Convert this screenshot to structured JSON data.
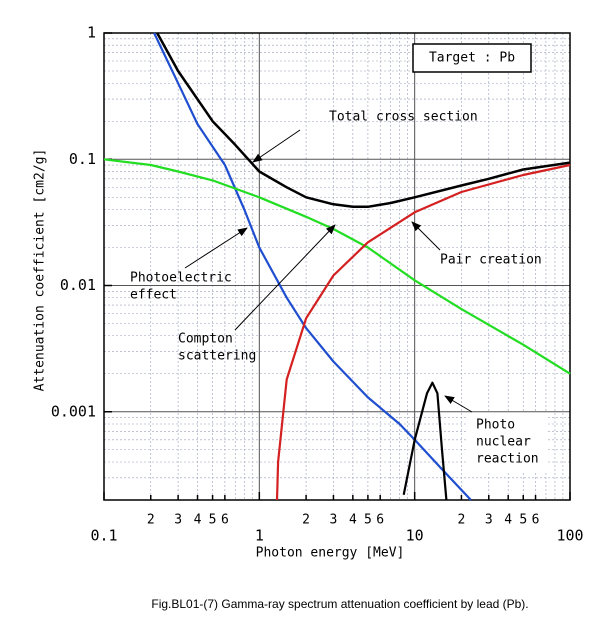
{
  "chart_data": {
    "type": "line",
    "x_label": "Photon energy [MeV]",
    "y_label": "Attenuation coefficient  [cm2/g]",
    "caption": "Fig.BL01-(7)  Gamma-ray spectrum attenuation coefficient by lead (Pb).",
    "log_x": true,
    "log_y": true,
    "grid": true,
    "minor_grid": true,
    "xlim": [
      0.1,
      100
    ],
    "ylim": [
      0.0002,
      1
    ],
    "xticks": [
      0.1,
      {
        "value": 0.2,
        "label": "2"
      },
      {
        "value": 0.3,
        "label": "3"
      },
      {
        "value": 0.4,
        "label": "4"
      },
      {
        "value": 0.5,
        "label": "5"
      },
      {
        "value": 0.6,
        "label": "6"
      },
      1,
      {
        "value": 2,
        "label": "2"
      },
      {
        "value": 3,
        "label": "3"
      },
      {
        "value": 4,
        "label": "4"
      },
      {
        "value": 5,
        "label": "5"
      },
      {
        "value": 6,
        "label": "6"
      },
      {
        "value": 10,
        "label": "10"
      },
      {
        "value": 20,
        "label": "2"
      },
      {
        "value": 30,
        "label": "3"
      },
      {
        "value": 40,
        "label": "4"
      },
      {
        "value": 50,
        "label": "5"
      },
      {
        "value": 60,
        "label": "6"
      },
      100
    ],
    "yticks": [
      0.001,
      0.01,
      0.1,
      1
    ],
    "series": [
      {
        "color": "#000000",
        "x": [
          0.22,
          0.3,
          0.5,
          0.7,
          1,
          1.5,
          2,
          3,
          4,
          5,
          7,
          10,
          20,
          30,
          50,
          100
        ],
        "values": [
          1,
          0.5,
          0.2,
          0.13,
          0.08,
          0.06,
          0.05,
          0.044,
          0.042,
          0.042,
          0.045,
          0.05,
          0.062,
          0.07,
          0.083,
          0.094
        ]
      },
      {
        "color": "#1f4fd0",
        "x": [
          0.21,
          0.3,
          0.4,
          0.6,
          0.8,
          1,
          1.5,
          2,
          3,
          5,
          8,
          10,
          15,
          23
        ],
        "values": [
          1,
          0.4,
          0.19,
          0.09,
          0.04,
          0.02,
          0.008,
          0.0046,
          0.0025,
          0.0013,
          0.0008,
          0.0006,
          0.00035,
          0.0002
        ]
      },
      {
        "color": "#22dd22",
        "x": [
          0.1,
          0.2,
          0.3,
          0.5,
          1,
          2,
          3,
          5,
          10,
          20,
          50,
          100
        ],
        "values": [
          0.1,
          0.09,
          0.08,
          0.068,
          0.05,
          0.035,
          0.028,
          0.02,
          0.011,
          0.0065,
          0.0034,
          0.002
        ]
      },
      {
        "color": "#d42020",
        "x": [
          1.3,
          1.32,
          1.5,
          2,
          3,
          5,
          10,
          20,
          50,
          100
        ],
        "values": [
          0.0002,
          0.0004,
          0.0018,
          0.0055,
          0.012,
          0.022,
          0.038,
          0.055,
          0.075,
          0.09
        ]
      },
      {
        "color": "#000000",
        "x": [
          8.5,
          10,
          12,
          13,
          14,
          15,
          16
        ],
        "values": [
          0.00022,
          0.0006,
          0.0014,
          0.0017,
          0.0014,
          0.0005,
          0.0002
        ]
      }
    ],
    "annotations": [
      {
        "lines": [
          "Target : Pb"
        ]
      },
      {
        "lines": [
          "Total cross section"
        ]
      },
      {
        "lines": [
          "Photoelectric",
          "effect"
        ]
      },
      {
        "lines": [
          "Compton",
          "scattering"
        ]
      },
      {
        "lines": [
          "Pair creation"
        ]
      },
      {
        "lines": [
          "Photo",
          "nuclear",
          "reaction"
        ]
      }
    ]
  }
}
